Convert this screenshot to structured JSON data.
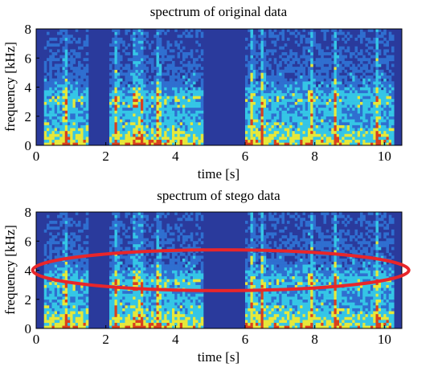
{
  "colors": {
    "background": "#2a3a9c",
    "silence": "#27379a",
    "low": "#2f6fd0",
    "mid": "#35c6e6",
    "high": "#e6e83a",
    "peak": "#d8401f",
    "annotation": "#e8262a"
  },
  "chart_data": [
    {
      "type": "heatmap",
      "title": "spectrum of original data",
      "xlabel": "time [s]",
      "ylabel": "frequency [kHz]",
      "xlim": [
        0,
        10.5
      ],
      "ylim": [
        0,
        8
      ],
      "xticks": [
        "0",
        "2",
        "4",
        "6",
        "8",
        "10"
      ],
      "yticks": [
        "0",
        "2",
        "4",
        "6",
        "8"
      ],
      "speech_segments_s": [
        [
          0.2,
          1.5
        ],
        [
          2.1,
          4.8
        ],
        [
          6.0,
          10.3
        ]
      ],
      "silence_segments_s": [
        [
          1.5,
          2.1
        ],
        [
          4.8,
          6.0
        ]
      ],
      "annotation": null
    },
    {
      "type": "heatmap",
      "title": "spectrum of stego data",
      "xlabel": "time [s]",
      "ylabel": "frequency [kHz]",
      "xlim": [
        0,
        10.5
      ],
      "ylim": [
        0,
        8
      ],
      "xticks": [
        "0",
        "2",
        "4",
        "6",
        "8",
        "10"
      ],
      "yticks": [
        "0",
        "2",
        "4",
        "6",
        "8"
      ],
      "speech_segments_s": [
        [
          0.2,
          1.5
        ],
        [
          2.1,
          4.8
        ],
        [
          6.0,
          10.3
        ]
      ],
      "silence_segments_s": [
        [
          1.5,
          2.1
        ],
        [
          4.8,
          6.0
        ]
      ],
      "annotation": {
        "shape": "ellipse",
        "center_time_s": 5.3,
        "center_freq_khz": 4.0,
        "time_radius_s": 5.4,
        "freq_radius_khz": 1.4
      }
    }
  ]
}
